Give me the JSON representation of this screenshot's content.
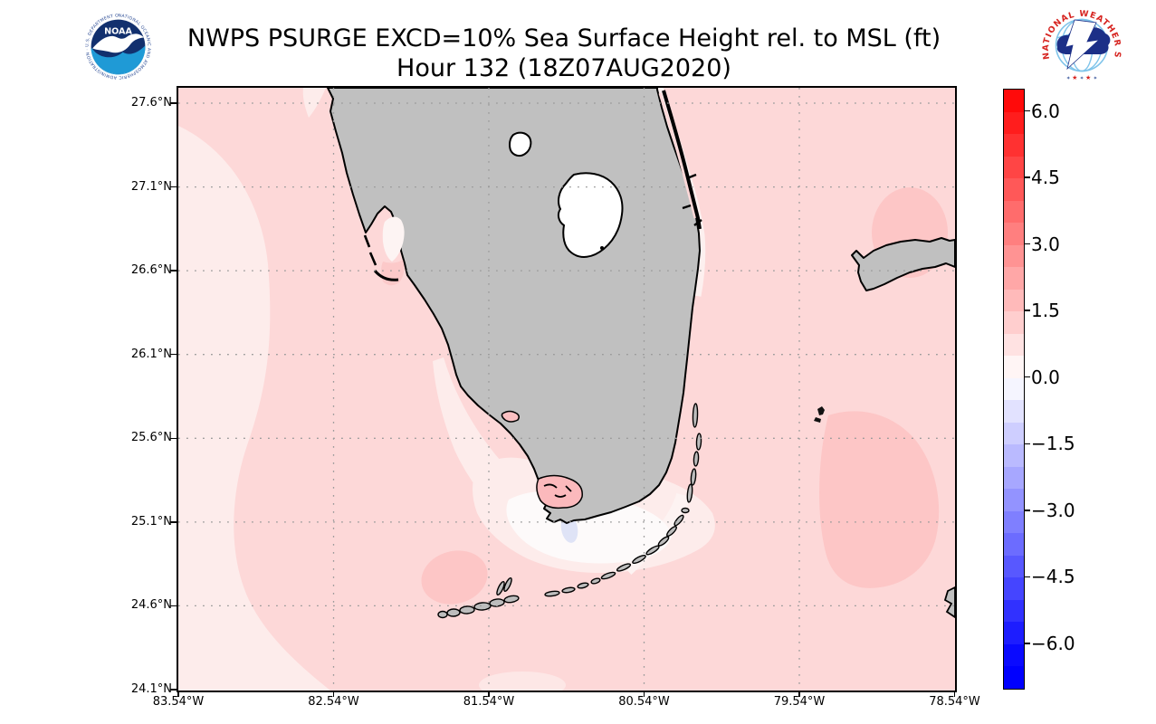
{
  "header": {
    "title_line1": "NWPS PSURGE EXCD=10% Sea Surface Height rel. to MSL (ft)",
    "title_line2": "Hour 132 (18Z07AUG2020)",
    "noaa_logo": {
      "center_text": "NOAA",
      "ring_text": "NATIONAL OCEANIC AND ATMOSPHERIC ADMINISTRATION · U.S. DEPARTMENT OF COMMERCE ·"
    },
    "nws_logo": {
      "arc_text": "NATIONAL WEATHER SERVICE",
      "stars": "★ ★ ★"
    }
  },
  "chart_data": {
    "type": "heatmap",
    "title": "NWPS PSURGE EXCD=10% Sea Surface Height rel. to MSL (ft)",
    "subtitle": "Hour 132 (18Z07AUG2020)",
    "variable": "Sea surface height relative to MSL (ft), 10% exceedance probability",
    "region": "South Florida, Florida Keys and adjacent Gulf/Atlantic waters with Grand Bahama at right",
    "x_axis": {
      "ticks": [
        "83.54°W",
        "82.54°W",
        "81.54°W",
        "80.54°W",
        "79.54°W",
        "78.54°W"
      ],
      "range_deg_west": [
        83.54,
        78.54
      ]
    },
    "y_axis": {
      "ticks": [
        "27.6°N",
        "27.1°N",
        "26.6°N",
        "26.1°N",
        "25.6°N",
        "25.1°N",
        "24.6°N",
        "24.1°N"
      ],
      "range_deg_north": [
        24.1,
        27.69
      ]
    },
    "grid": "dotted gray at every labeled tick",
    "colorbar": {
      "tick_values": [
        6.0,
        4.5,
        3.0,
        1.5,
        0.0,
        -1.5,
        -3.0,
        -4.5,
        -6.0
      ],
      "tick_labels": [
        "6.0",
        "4.5",
        "3.0",
        "1.5",
        "0.0",
        "−1.5",
        "−3.0",
        "−4.5",
        "−6.0"
      ],
      "value_range_top_to_bottom": [
        6.5,
        -7.0
      ],
      "step_ft": 0.5,
      "segments_top_to_bottom": [
        "#ff0a0a",
        "#ff1d1d",
        "#ff3131",
        "#ff4545",
        "#ff5858",
        "#ff6c6c",
        "#ff7f7f",
        "#ff9393",
        "#ffa7a7",
        "#ffbaba",
        "#ffcece",
        "#ffe2e2",
        "#fff5f5",
        "#f5f5ff",
        "#e2e2ff",
        "#ceceff",
        "#babaff",
        "#a7a7ff",
        "#9393ff",
        "#7f7fff",
        "#6c6cff",
        "#5858ff",
        "#4545ff",
        "#3131ff",
        "#1d1dff",
        "#0a0aff",
        "#0000ff"
      ]
    },
    "estimated_field_values_ft": {
      "open_gulf_and_atlantic": 1.0,
      "nearshore_west_gulf_band": 0.4,
      "florida_bay": 0.1,
      "florida_bay_minimum_spot": -0.3,
      "blob_southwest_of_key_west": 1.4,
      "atlantic_blob_east_of_upper_keys": 1.4,
      "blob_north_of_grand_bahama": 1.4,
      "whitewater_bay": 1.8
    }
  },
  "map": {
    "colors": {
      "land": "#c0c0c0",
      "coastline": "#000000",
      "sea_main": "#fdd8d8",
      "sea_light_band": "#fdeceb",
      "sea_near_white": "#fdfafa",
      "sea_blue_spot": "#dfe3f6",
      "sea_dark_pink_blob": "#fdc6c6",
      "whitewater_bay_pink": "#fbb9bc",
      "lake_fill": "#ffffff",
      "gridline": "#9a9a9a"
    },
    "features": [
      "Florida peninsula",
      "Lake Okeechobee",
      "Lake Istokpoga",
      "Charlotte Harbor",
      "Ten Thousand Islands",
      "Cape Sable",
      "Florida Bay",
      "Florida Keys",
      "Biscayne Bay barrier islands",
      "Grand Bahama",
      "Bimini",
      "Andros fragment at right edge"
    ]
  }
}
